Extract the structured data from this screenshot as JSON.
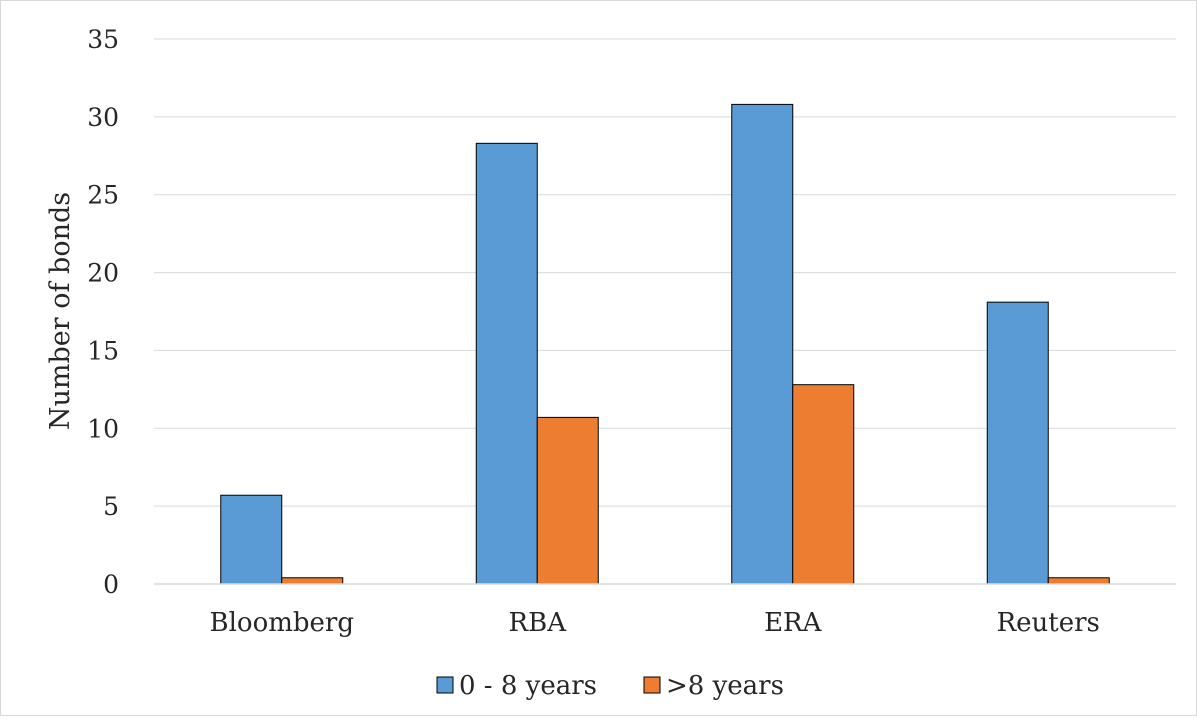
{
  "chart_data": {
    "type": "bar",
    "title": "",
    "xlabel": "",
    "ylabel": "Number of bonds",
    "ylim": [
      0,
      35
    ],
    "yticks": [
      0,
      5,
      10,
      15,
      20,
      25,
      30,
      35
    ],
    "grid": true,
    "legend_position": "bottom",
    "categories": [
      "Bloomberg",
      "RBA",
      "ERA",
      "Reuters"
    ],
    "series": [
      {
        "name": "0 - 8 years",
        "color": "#5B9BD5",
        "values": [
          5.7,
          28.3,
          30.8,
          18.1
        ]
      },
      {
        "name": ">8 years",
        "color": "#ED7D31",
        "values": [
          0.4,
          10.7,
          12.8,
          0.4
        ]
      }
    ]
  }
}
